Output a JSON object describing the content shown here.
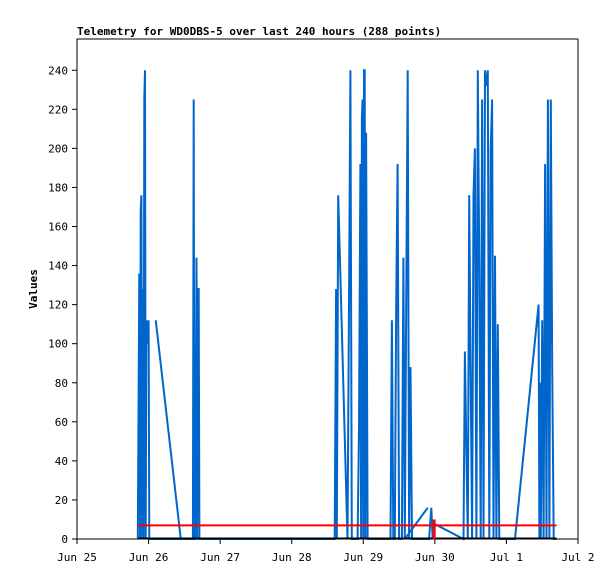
{
  "chart_data": {
    "type": "line",
    "title": "Telemetry for WD0DBS-5 over last 240 hours (288 points)",
    "xlabel": "",
    "ylabel": "Values",
    "x_ticks": [
      "Jun 25",
      "Jun 26",
      "Jun 27",
      "Jun 28",
      "Jun 29",
      "Jun 30",
      "Jul 1",
      "Jul 2"
    ],
    "y_ticks": [
      0,
      20,
      40,
      60,
      80,
      100,
      120,
      140,
      160,
      180,
      200,
      220,
      240
    ],
    "xlim": [
      0,
      7
    ],
    "ylim": [
      0,
      256
    ],
    "grid": false,
    "x_units": "days after Jun 25 00:00",
    "series": [
      {
        "name": "",
        "color": "#0066cc",
        "x": [
          0.85,
          0.87,
          0.88,
          0.89,
          0.9,
          0.91,
          0.92,
          0.93,
          0.94,
          0.95,
          0.96,
          0.97,
          0.98,
          0.99,
          1.0,
          1.01,
          1.02,
          1.03,
          1.04,
          1.05,
          1.06,
          1.07,
          1.08,
          1.09,
          1.1,
          1.13,
          1.45,
          1.6,
          1.62,
          1.63,
          1.64,
          1.65,
          1.66,
          1.67,
          1.68,
          1.69,
          1.7,
          1.71,
          1.72,
          3.6,
          3.62,
          3.63,
          3.65,
          3.78,
          3.8,
          3.82,
          3.84,
          3.86,
          3.88,
          3.92,
          3.94,
          3.96,
          3.97,
          3.98,
          3.99,
          4.0,
          4.01,
          4.02,
          4.03,
          4.04,
          4.05,
          4.06,
          4.07,
          4.08,
          4.09,
          4.1,
          4.11,
          4.38,
          4.4,
          4.42,
          4.44,
          4.46,
          4.48,
          4.5,
          4.52,
          4.54,
          4.56,
          4.58,
          4.6,
          4.62,
          4.64,
          4.66,
          4.68,
          4.7,
          4.75,
          4.92,
          4.95,
          4.97,
          4.98,
          5.4,
          5.42,
          5.44,
          5.46,
          5.48,
          5.5,
          5.52,
          5.54,
          5.56,
          5.58,
          5.6,
          5.62,
          5.64,
          5.66,
          5.68,
          5.7,
          5.72,
          5.74,
          5.76,
          5.78,
          5.8,
          5.82,
          5.84,
          5.86,
          5.88,
          5.9,
          5.92,
          5.94,
          5.96,
          5.98,
          6.0,
          6.02,
          6.04,
          6.06,
          6.08,
          6.1,
          6.12,
          6.45,
          6.46,
          6.47,
          6.48,
          6.5,
          6.52,
          6.54,
          6.56,
          6.58,
          6.6,
          6.62,
          6.64,
          6.66,
          6.68,
          6.7
        ],
        "y": [
          0,
          136,
          0,
          168,
          176,
          0,
          128,
          0,
          225,
          240,
          0,
          112,
          100,
          108,
          112,
          0,
          0,
          0,
          0,
          0,
          0,
          0,
          0,
          0,
          0,
          0,
          0,
          0,
          0,
          225,
          0,
          0,
          56,
          144,
          0,
          128,
          128,
          0,
          0,
          0,
          128,
          0,
          176,
          0,
          120,
          240,
          0,
          0,
          0,
          0,
          56,
          192,
          0,
          216,
          225,
          0,
          240,
          240,
          0,
          208,
          104,
          0,
          0,
          0,
          0,
          0,
          0,
          0,
          112,
          0,
          0,
          120,
          192,
          0,
          0,
          0,
          144,
          0,
          120,
          240,
          0,
          88,
          0,
          0,
          0,
          0,
          16,
          0,
          8,
          0,
          96,
          48,
          0,
          176,
          88,
          0,
          176,
          200,
          0,
          240,
          145,
          0,
          225,
          0,
          240,
          232,
          240,
          0,
          200,
          225,
          0,
          145,
          0,
          110,
          0,
          0,
          0,
          0,
          0,
          0,
          0,
          0,
          0,
          0,
          0,
          0,
          120,
          0,
          80,
          0,
          112,
          0,
          192,
          0,
          225,
          0,
          225,
          88,
          0,
          0,
          0
        ],
        "segments_x": [
          [
            1.1,
            1.45
          ],
          [
            4.58,
            4.9
          ],
          [
            1.1,
            1.55
          ]
        ],
        "segments_y": [
          [
            112,
            0
          ],
          [
            0,
            16
          ],
          [
            0,
            0
          ]
        ]
      },
      {
        "name": "",
        "color": "#ff0000",
        "x": [
          0.85,
          6.7
        ],
        "y": [
          7,
          7
        ],
        "spike_x": 4.99,
        "spike_y": [
          0,
          10
        ]
      },
      {
        "name": "",
        "color": "#000000",
        "x": [
          0.85,
          6.7
        ],
        "y": [
          0,
          0
        ]
      }
    ]
  }
}
